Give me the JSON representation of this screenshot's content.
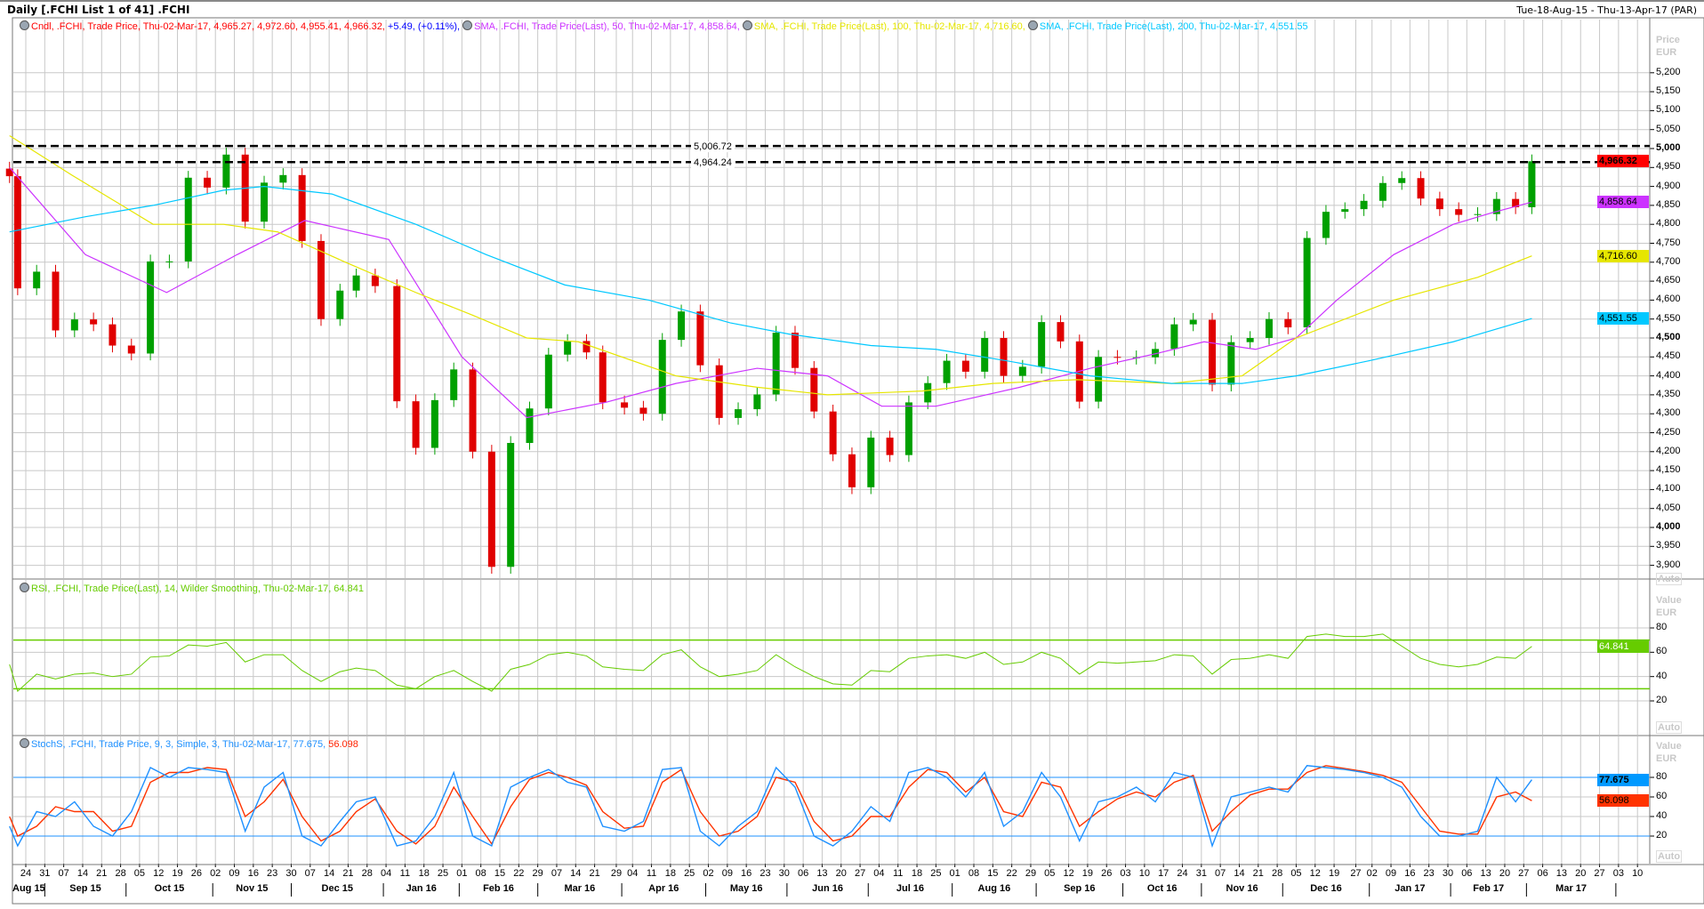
{
  "header": {
    "title": "Daily [.FCHI List 1 of 41] .FCHI",
    "range": "Tue-18-Aug-15 - Thu-13-Apr-17 (PAR)"
  },
  "legends": {
    "price": [
      {
        "text": "Cndl, .FCHI, Trade Price, Thu-02-Mar-17, 4,965.27, 4,972.60, 4,955.41, 4,966.32, ",
        "color": "#ff0000",
        "clock": true
      },
      {
        "text": "+5.49, (+0.11%), ",
        "color": "#0000ff",
        "clock": false
      },
      {
        "text": "SMA, .FCHI, Trade Price(Last),  50, Thu-02-Mar-17, 4,858.64, ",
        "color": "#cc33ff",
        "clock": true
      },
      {
        "text": "SMA, .FCHI, Trade Price(Last),  100, Thu-02-Mar-17, 4,716.60, ",
        "color": "#e6e600",
        "clock": true
      },
      {
        "text": "SMA, .FCHI, Trade Price(Last),  200, Thu-02-Mar-17, 4,551.55",
        "color": "#00c8ff",
        "clock": true
      }
    ],
    "rsi": [
      {
        "text": "RSI, .FCHI, Trade Price(Last),  14, Wilder Smoothing, Thu-02-Mar-17, 64.841",
        "color": "#66cc00",
        "clock": true
      }
    ],
    "stoch": [
      {
        "text": "StochS, .FCHI, Trade Price,  9, 3, Simple, 3, Thu-02-Mar-17, 77.675, ",
        "color": "#1e90ff",
        "clock": true
      },
      {
        "text": "56.098",
        "color": "#ff2200",
        "clock": false
      }
    ]
  },
  "axis_units": {
    "price": [
      "Price",
      "EUR"
    ],
    "rsi": [
      "Value",
      "EUR"
    ],
    "stoch": [
      "Value",
      "EUR"
    ],
    "auto": "Auto"
  },
  "value_boxes": [
    {
      "panel": "price",
      "value": 4966.32,
      "text": "4,966.32",
      "bg": "#ff0000",
      "fg": "#000",
      "bold": true
    },
    {
      "panel": "price",
      "value": 4858.64,
      "text": "4,858.64",
      "bg": "#cc33ff",
      "fg": "#000",
      "bold": false
    },
    {
      "panel": "price",
      "value": 4716.6,
      "text": "4,716.60",
      "bg": "#e6e600",
      "fg": "#000",
      "bold": false
    },
    {
      "panel": "price",
      "value": 4551.55,
      "text": "4,551.55",
      "bg": "#00c8ff",
      "fg": "#000",
      "bold": false
    },
    {
      "panel": "rsi",
      "value": 64.841,
      "text": "64.841",
      "bg": "#66cc00",
      "fg": "#fff",
      "bold": false
    },
    {
      "panel": "stoch",
      "value": 77.675,
      "text": "77.675",
      "bg": "#0099ff",
      "fg": "#000",
      "bold": true
    },
    {
      "panel": "stoch",
      "value": 56.098,
      "text": "56.098",
      "bg": "#ff3300",
      "fg": "#000",
      "bold": false
    }
  ],
  "chart_data": [
    {
      "type": "candlestick",
      "panel": "price",
      "ylim": [
        3850,
        5250
      ],
      "yticks": [
        3900,
        3950,
        4000,
        4050,
        4100,
        4150,
        4200,
        4250,
        4300,
        4350,
        4400,
        4450,
        4500,
        4550,
        4600,
        4650,
        4700,
        4750,
        4800,
        4850,
        4900,
        4950,
        5000,
        5050,
        5100,
        5150,
        5200
      ],
      "ytick_bold": [
        4000,
        4500,
        5000
      ],
      "up_color": "#00a000",
      "down_color": "#e00000",
      "dates": [
        "2015-08-18",
        "2015-08-21",
        "2015-08-28",
        "2015-09-04",
        "2015-09-11",
        "2015-09-18",
        "2015-09-25",
        "2015-10-02",
        "2015-10-09",
        "2015-10-16",
        "2015-10-23",
        "2015-10-30",
        "2015-11-06",
        "2015-11-13",
        "2015-11-20",
        "2015-11-27",
        "2015-12-04",
        "2015-12-11",
        "2015-12-18",
        "2015-12-24",
        "2015-12-31",
        "2016-01-08",
        "2016-01-15",
        "2016-01-22",
        "2016-01-29",
        "2016-02-05",
        "2016-02-12",
        "2016-02-19",
        "2016-02-26",
        "2016-03-04",
        "2016-03-11",
        "2016-03-18",
        "2016-03-24",
        "2016-04-01",
        "2016-04-08",
        "2016-04-15",
        "2016-04-22",
        "2016-04-29",
        "2016-05-06",
        "2016-05-13",
        "2016-05-20",
        "2016-05-27",
        "2016-06-03",
        "2016-06-10",
        "2016-06-17",
        "2016-06-24",
        "2016-07-01",
        "2016-07-08",
        "2016-07-15",
        "2016-07-22",
        "2016-07-29",
        "2016-08-05",
        "2016-08-12",
        "2016-08-19",
        "2016-08-26",
        "2016-09-02",
        "2016-09-09",
        "2016-09-16",
        "2016-09-23",
        "2016-09-30",
        "2016-10-07",
        "2016-10-14",
        "2016-10-21",
        "2016-10-28",
        "2016-11-04",
        "2016-11-11",
        "2016-11-18",
        "2016-11-25",
        "2016-12-02",
        "2016-12-09",
        "2016-12-16",
        "2016-12-23",
        "2016-12-30",
        "2017-01-06",
        "2017-01-13",
        "2017-01-20",
        "2017-01-27",
        "2017-02-03",
        "2017-02-10",
        "2017-02-17",
        "2017-02-24",
        "2017-03-02"
      ],
      "close": [
        4927,
        4631,
        4675,
        4520,
        4549,
        4536,
        4480,
        4459,
        4702,
        4702,
        4923,
        4897,
        4984,
        4807,
        4910,
        4930,
        4756,
        4550,
        4625,
        4665,
        4637,
        4333,
        4210,
        4336,
        4417,
        4200,
        3896,
        4223,
        4314,
        4456,
        4492,
        4462,
        4330,
        4316,
        4300,
        4495,
        4570,
        4428,
        4289,
        4312,
        4351,
        4514,
        4421,
        4306,
        4193,
        4106,
        4237,
        4191,
        4330,
        4381,
        4440,
        4411,
        4500,
        4400,
        4424,
        4542,
        4491,
        4332,
        4450,
        4448,
        4449,
        4471,
        4536,
        4548,
        4377,
        4489,
        4500,
        4550,
        4528,
        4764,
        4833,
        4840,
        4862,
        4909,
        4922,
        4868,
        4840,
        4825,
        4827,
        4867,
        4845,
        4966.32
      ],
      "last_candle": {
        "date": "2017-03-02",
        "open": 4965.27,
        "high": 4972.6,
        "low": 4955.41,
        "close": 4966.32,
        "change": 5.49,
        "change_pct": 0.11
      },
      "sma": [
        {
          "name": "SMA 50",
          "color": "#cc33ff",
          "last": 4858.64,
          "points": [
            [
              "2015-08-18",
              4950
            ],
            [
              "2015-09-15",
              4720
            ],
            [
              "2015-10-15",
              4620
            ],
            [
              "2015-11-10",
              4720
            ],
            [
              "2015-12-05",
              4810
            ],
            [
              "2016-01-05",
              4760
            ],
            [
              "2016-02-01",
              4450
            ],
            [
              "2016-02-25",
              4290
            ],
            [
              "2016-03-25",
              4330
            ],
            [
              "2016-04-20",
              4380
            ],
            [
              "2016-05-20",
              4420
            ],
            [
              "2016-06-15",
              4400
            ],
            [
              "2016-07-05",
              4320
            ],
            [
              "2016-07-25",
              4320
            ],
            [
              "2016-08-25",
              4370
            ],
            [
              "2016-09-20",
              4420
            ],
            [
              "2016-10-15",
              4460
            ],
            [
              "2016-11-01",
              4490
            ],
            [
              "2016-11-20",
              4470
            ],
            [
              "2016-12-05",
              4500
            ],
            [
              "2016-12-20",
              4600
            ],
            [
              "2017-01-10",
              4720
            ],
            [
              "2017-02-01",
              4800
            ],
            [
              "2017-02-15",
              4830
            ],
            [
              "2017-03-02",
              4858.64
            ]
          ]
        },
        {
          "name": "SMA 100",
          "color": "#e6e600",
          "last": 4716.6,
          "points": [
            [
              "2015-08-18",
              5034
            ],
            [
              "2015-09-10",
              4930
            ],
            [
              "2015-10-10",
              4800
            ],
            [
              "2015-11-05",
              4800
            ],
            [
              "2015-11-25",
              4780
            ],
            [
              "2015-12-20",
              4700
            ],
            [
              "2016-01-15",
              4620
            ],
            [
              "2016-02-05",
              4560
            ],
            [
              "2016-02-25",
              4500
            ],
            [
              "2016-03-15",
              4490
            ],
            [
              "2016-04-20",
              4400
            ],
            [
              "2016-05-20",
              4370
            ],
            [
              "2016-06-15",
              4350
            ],
            [
              "2016-07-20",
              4360
            ],
            [
              "2016-08-15",
              4380
            ],
            [
              "2016-09-15",
              4390
            ],
            [
              "2016-10-20",
              4380
            ],
            [
              "2016-11-15",
              4400
            ],
            [
              "2016-12-05",
              4500
            ],
            [
              "2017-01-10",
              4600
            ],
            [
              "2017-02-10",
              4660
            ],
            [
              "2017-03-02",
              4716.6
            ]
          ]
        },
        {
          "name": "SMA 200",
          "color": "#00c8ff",
          "last": 4551.55,
          "points": [
            [
              "2015-08-18",
              4780
            ],
            [
              "2015-09-15",
              4820
            ],
            [
              "2015-10-10",
              4850
            ],
            [
              "2015-11-05",
              4890
            ],
            [
              "2015-11-20",
              4900
            ],
            [
              "2015-12-15",
              4880
            ],
            [
              "2016-01-15",
              4800
            ],
            [
              "2016-02-10",
              4720
            ],
            [
              "2016-03-10",
              4640
            ],
            [
              "2016-04-10",
              4600
            ],
            [
              "2016-05-10",
              4540
            ],
            [
              "2016-06-01",
              4510
            ],
            [
              "2016-07-01",
              4480
            ],
            [
              "2016-07-25",
              4470
            ],
            [
              "2016-08-20",
              4440
            ],
            [
              "2016-09-20",
              4400
            ],
            [
              "2016-10-20",
              4380
            ],
            [
              "2016-11-15",
              4380
            ],
            [
              "2016-12-05",
              4400
            ],
            [
              "2017-01-01",
              4440
            ],
            [
              "2017-02-01",
              4490
            ],
            [
              "2017-02-20",
              4530
            ],
            [
              "2017-03-02",
              4551.55
            ]
          ]
        }
      ],
      "hlines": [
        {
          "value": 5006.72,
          "label": "5,006.72"
        },
        {
          "value": 4964.24,
          "label": "4,964.24"
        }
      ]
    },
    {
      "type": "line",
      "panel": "rsi",
      "ylim": [
        0,
        100
      ],
      "yticks": [
        20,
        40,
        60,
        80
      ],
      "levels": [
        30,
        70
      ],
      "color": "#66cc00",
      "last": 64.841,
      "values": [
        50,
        28,
        42,
        38,
        42,
        43,
        40,
        42,
        56,
        57,
        66,
        65,
        68,
        52,
        58,
        58,
        45,
        36,
        44,
        47,
        45,
        33,
        30,
        40,
        45,
        36,
        28,
        46,
        50,
        58,
        60,
        57,
        48,
        46,
        45,
        58,
        62,
        48,
        40,
        42,
        45,
        58,
        48,
        40,
        34,
        33,
        45,
        44,
        55,
        57,
        58,
        55,
        60,
        50,
        52,
        60,
        55,
        42,
        52,
        51,
        52,
        53,
        58,
        57,
        42,
        54,
        55,
        58,
        55,
        73,
        75,
        73,
        73,
        75,
        65,
        55,
        50,
        48,
        50,
        56,
        55,
        64.841
      ]
    },
    {
      "type": "line",
      "panel": "stoch",
      "ylim": [
        0,
        100
      ],
      "yticks": [
        20,
        40,
        60,
        80
      ],
      "levels": [
        20,
        80
      ],
      "series": [
        {
          "name": "%K",
          "color": "#1e90ff",
          "last": 77.675,
          "values": [
            30,
            10,
            45,
            40,
            55,
            30,
            20,
            45,
            90,
            80,
            90,
            88,
            85,
            25,
            70,
            85,
            20,
            10,
            35,
            55,
            60,
            10,
            15,
            40,
            85,
            20,
            10,
            70,
            80,
            88,
            75,
            70,
            30,
            25,
            35,
            88,
            90,
            25,
            10,
            30,
            45,
            90,
            70,
            20,
            10,
            25,
            50,
            35,
            85,
            90,
            80,
            60,
            85,
            30,
            45,
            85,
            60,
            15,
            55,
            60,
            70,
            55,
            85,
            80,
            10,
            60,
            65,
            70,
            65,
            92,
            90,
            88,
            85,
            80,
            70,
            40,
            20,
            20,
            25,
            80,
            55,
            77.675
          ]
        },
        {
          "name": "%D",
          "color": "#ff3300",
          "last": 56.098,
          "values": [
            40,
            20,
            30,
            50,
            45,
            45,
            25,
            30,
            75,
            85,
            85,
            90,
            88,
            40,
            55,
            78,
            40,
            15,
            25,
            45,
            58,
            25,
            12,
            30,
            70,
            40,
            12,
            50,
            78,
            85,
            80,
            72,
            45,
            28,
            30,
            75,
            88,
            45,
            20,
            25,
            40,
            80,
            75,
            35,
            15,
            20,
            40,
            40,
            70,
            88,
            85,
            65,
            80,
            45,
            40,
            75,
            70,
            30,
            45,
            58,
            65,
            60,
            75,
            82,
            25,
            45,
            62,
            68,
            68,
            85,
            92,
            89,
            86,
            82,
            75,
            50,
            25,
            22,
            22,
            60,
            65,
            56.098
          ]
        }
      ]
    }
  ],
  "x_axis": {
    "ticks": [
      "2015-08-24",
      "2015-08-31",
      "2015-09-07",
      "2015-09-14",
      "2015-09-21",
      "2015-09-28",
      "2015-10-05",
      "2015-10-12",
      "2015-10-19",
      "2015-10-26",
      "2015-11-02",
      "2015-11-09",
      "2015-11-16",
      "2015-11-23",
      "2015-11-30",
      "2015-12-07",
      "2015-12-14",
      "2015-12-21",
      "2015-12-28",
      "2016-01-04",
      "2016-01-11",
      "2016-01-18",
      "2016-01-25",
      "2016-02-01",
      "2016-02-08",
      "2016-02-15",
      "2016-02-22",
      "2016-02-29",
      "2016-03-07",
      "2016-03-14",
      "2016-03-21",
      "2016-03-29",
      "2016-04-04",
      "2016-04-11",
      "2016-04-18",
      "2016-04-25",
      "2016-05-02",
      "2016-05-09",
      "2016-05-16",
      "2016-05-23",
      "2016-05-30",
      "2016-06-06",
      "2016-06-13",
      "2016-06-20",
      "2016-06-27",
      "2016-07-04",
      "2016-07-11",
      "2016-07-18",
      "2016-07-25",
      "2016-08-01",
      "2016-08-08",
      "2016-08-15",
      "2016-08-22",
      "2016-08-29",
      "2016-09-05",
      "2016-09-12",
      "2016-09-19",
      "2016-09-26",
      "2016-10-03",
      "2016-10-10",
      "2016-10-17",
      "2016-10-24",
      "2016-10-31",
      "2016-11-07",
      "2016-11-14",
      "2016-11-21",
      "2016-11-28",
      "2016-12-05",
      "2016-12-12",
      "2016-12-19",
      "2016-12-27",
      "2017-01-02",
      "2017-01-09",
      "2017-01-16",
      "2017-01-23",
      "2017-01-30",
      "2017-02-06",
      "2017-02-13",
      "2017-02-20",
      "2017-02-27",
      "2017-03-06",
      "2017-03-13",
      "2017-03-20",
      "2017-03-27",
      "2017-04-03",
      "2017-04-10"
    ],
    "months": [
      [
        "2015-08-18",
        "Aug 15"
      ],
      [
        "2015-09-01",
        "Sep 15"
      ],
      [
        "2015-10-01",
        "Oct 15"
      ],
      [
        "2015-11-02",
        "Nov 15"
      ],
      [
        "2015-12-01",
        "Dec 15"
      ],
      [
        "2016-01-04",
        "Jan 16"
      ],
      [
        "2016-02-01",
        "Feb 16"
      ],
      [
        "2016-03-01",
        "Mar 16"
      ],
      [
        "2016-04-01",
        "Apr 16"
      ],
      [
        "2016-05-02",
        "May 16"
      ],
      [
        "2016-06-01",
        "Jun 16"
      ],
      [
        "2016-07-01",
        "Jul 16"
      ],
      [
        "2016-08-01",
        "Aug 16"
      ],
      [
        "2016-09-01",
        "Sep 16"
      ],
      [
        "2016-10-03",
        "Oct 16"
      ],
      [
        "2016-11-01",
        "Nov 16"
      ],
      [
        "2016-12-01",
        "Dec 16"
      ],
      [
        "2017-01-02",
        "Jan 17"
      ],
      [
        "2017-02-01",
        "Feb 17"
      ],
      [
        "2017-03-01",
        "Mar 17"
      ],
      [
        "2017-04-03",
        ""
      ]
    ]
  }
}
